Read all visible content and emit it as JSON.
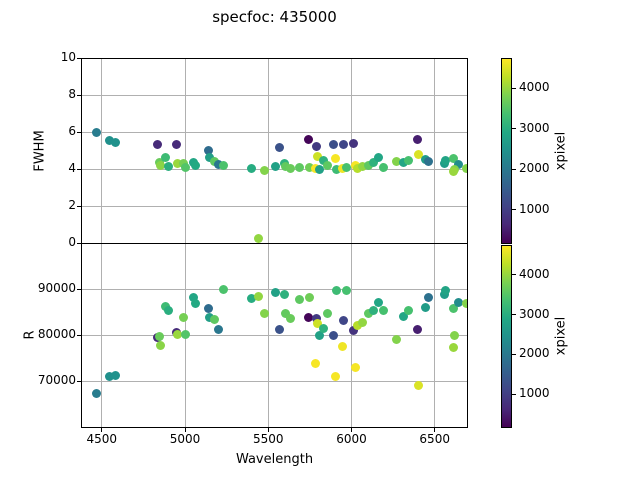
{
  "figure": {
    "title": "specfoc: 435000"
  },
  "chart_data": {
    "type": "scatter",
    "title": "specfoc: 435000",
    "xlabel": "Wavelength",
    "xlim": [
      4375,
      6700
    ],
    "xticks": [
      4500,
      5000,
      5500,
      6000,
      6500
    ],
    "grid": true,
    "legend": "none",
    "panels": [
      {
        "name": "fwhm-panel",
        "ylabel": "FWHM",
        "y_key": "fwhm",
        "ylim": [
          0,
          10
        ],
        "yticks": [
          0,
          2,
          4,
          6,
          8,
          10
        ]
      },
      {
        "name": "r-panel",
        "ylabel": "R",
        "y_key": "r",
        "ylim": [
          60000,
          100000
        ],
        "yticks": [
          70000,
          80000,
          90000
        ]
      }
    ],
    "colorbar": {
      "label": "xpixel",
      "vmin": 200,
      "vmax": 4750,
      "ticks": [
        1000,
        2000,
        3000,
        4000
      ]
    },
    "points": [
      {
        "wavelength": 4470,
        "fwhm": 5.95,
        "r": 67300,
        "xpixel": 2100
      },
      {
        "wavelength": 4545,
        "fwhm": 5.52,
        "r": 70900,
        "xpixel": 2450
      },
      {
        "wavelength": 4580,
        "fwhm": 5.45,
        "r": 71300,
        "xpixel": 2500
      },
      {
        "wavelength": 4835,
        "fwhm": 5.3,
        "r": 79500,
        "xpixel": 700
      },
      {
        "wavelength": 4845,
        "fwhm": 4.35,
        "r": 79700,
        "xpixel": 3700
      },
      {
        "wavelength": 4855,
        "fwhm": 4.2,
        "r": 77700,
        "xpixel": 3950
      },
      {
        "wavelength": 4880,
        "fwhm": 4.6,
        "r": 86200,
        "xpixel": 3300
      },
      {
        "wavelength": 4900,
        "fwhm": 4.15,
        "r": 85400,
        "xpixel": 3050
      },
      {
        "wavelength": 4950,
        "fwhm": 5.3,
        "r": 80600,
        "xpixel": 700
      },
      {
        "wavelength": 4955,
        "fwhm": 4.3,
        "r": 80200,
        "xpixel": 4050
      },
      {
        "wavelength": 4990,
        "fwhm": 4.3,
        "r": 83800,
        "xpixel": 3800
      },
      {
        "wavelength": 5005,
        "fwhm": 4.1,
        "r": 80100,
        "xpixel": 3500
      },
      {
        "wavelength": 5050,
        "fwhm": 4.35,
        "r": 88200,
        "xpixel": 2900
      },
      {
        "wavelength": 5065,
        "fwhm": 4.2,
        "r": 86900,
        "xpixel": 2950
      },
      {
        "wavelength": 5140,
        "fwhm": 5.0,
        "r": 85700,
        "xpixel": 1800
      },
      {
        "wavelength": 5148,
        "fwhm": 4.62,
        "r": 83800,
        "xpixel": 2750
      },
      {
        "wavelength": 5180,
        "fwhm": 4.4,
        "r": 83300,
        "xpixel": 3600
      },
      {
        "wavelength": 5200,
        "fwhm": 4.25,
        "r": 81100,
        "xpixel": 2000
      },
      {
        "wavelength": 5230,
        "fwhm": 4.2,
        "r": 89800,
        "xpixel": 3450
      },
      {
        "wavelength": 5400,
        "fwhm": 4.05,
        "r": 87900,
        "xpixel": 3000
      },
      {
        "wavelength": 5440,
        "fwhm": 0.27,
        "r": 88350,
        "xpixel": 4000
      },
      {
        "wavelength": 5480,
        "fwhm": 3.9,
        "r": 84650,
        "xpixel": 3900
      },
      {
        "wavelength": 5545,
        "fwhm": 4.15,
        "r": 89300,
        "xpixel": 2800
      },
      {
        "wavelength": 5570,
        "fwhm": 5.15,
        "r": 81100,
        "xpixel": 1350
      },
      {
        "wavelength": 5595,
        "fwhm": 4.3,
        "r": 88800,
        "xpixel": 3100
      },
      {
        "wavelength": 5605,
        "fwhm": 4.15,
        "r": 84650,
        "xpixel": 3650
      },
      {
        "wavelength": 5635,
        "fwhm": 4.05,
        "r": 83600,
        "xpixel": 3700
      },
      {
        "wavelength": 5690,
        "fwhm": 4.1,
        "r": 87700,
        "xpixel": 3600
      },
      {
        "wavelength": 5740,
        "fwhm": 5.6,
        "r": 83800,
        "xpixel": 250
      },
      {
        "wavelength": 5748,
        "fwhm": 4.1,
        "r": 88200,
        "xpixel": 3750
      },
      {
        "wavelength": 5786,
        "fwhm": 4.05,
        "r": 73800,
        "xpixel": 4700
      },
      {
        "wavelength": 5790,
        "fwhm": 5.2,
        "r": 83600,
        "xpixel": 950
      },
      {
        "wavelength": 5795,
        "fwhm": 4.7,
        "r": 82600,
        "xpixel": 4400
      },
      {
        "wavelength": 5808,
        "fwhm": 4.0,
        "r": 80000,
        "xpixel": 2800
      },
      {
        "wavelength": 5830,
        "fwhm": 4.45,
        "r": 81400,
        "xpixel": 3100
      },
      {
        "wavelength": 5856,
        "fwhm": 4.2,
        "r": 84650,
        "xpixel": 3600
      },
      {
        "wavelength": 5894,
        "fwhm": 5.35,
        "r": 79850,
        "xpixel": 1300
      },
      {
        "wavelength": 5902,
        "fwhm": 4.55,
        "r": 71000,
        "xpixel": 4700
      },
      {
        "wavelength": 5912,
        "fwhm": 4.0,
        "r": 89650,
        "xpixel": 3300
      },
      {
        "wavelength": 5944,
        "fwhm": 4.05,
        "r": 77500,
        "xpixel": 4650
      },
      {
        "wavelength": 5952,
        "fwhm": 5.3,
        "r": 83200,
        "xpixel": 1150
      },
      {
        "wavelength": 5968,
        "fwhm": 4.1,
        "r": 89650,
        "xpixel": 3400
      },
      {
        "wavelength": 6012,
        "fwhm": 5.4,
        "r": 80900,
        "xpixel": 850
      },
      {
        "wavelength": 6026,
        "fwhm": 4.2,
        "r": 72900,
        "xpixel": 4700
      },
      {
        "wavelength": 6038,
        "fwhm": 4.05,
        "r": 82150,
        "xpixel": 4250
      },
      {
        "wavelength": 6066,
        "fwhm": 4.15,
        "r": 82650,
        "xpixel": 4000
      },
      {
        "wavelength": 6100,
        "fwhm": 4.2,
        "r": 84650,
        "xpixel": 3600
      },
      {
        "wavelength": 6130,
        "fwhm": 4.35,
        "r": 85350,
        "xpixel": 3100
      },
      {
        "wavelength": 6165,
        "fwhm": 4.6,
        "r": 87100,
        "xpixel": 2900
      },
      {
        "wavelength": 6192,
        "fwhm": 4.1,
        "r": 85350,
        "xpixel": 3400
      },
      {
        "wavelength": 6270,
        "fwhm": 4.43,
        "r": 78950,
        "xpixel": 3900
      },
      {
        "wavelength": 6315,
        "fwhm": 4.34,
        "r": 84000,
        "xpixel": 2900
      },
      {
        "wavelength": 6345,
        "fwhm": 4.45,
        "r": 85350,
        "xpixel": 3400
      },
      {
        "wavelength": 6395,
        "fwhm": 5.6,
        "r": 81200,
        "xpixel": 550
      },
      {
        "wavelength": 6400,
        "fwhm": 4.8,
        "r": 68950,
        "xpixel": 4500
      },
      {
        "wavelength": 6445,
        "fwhm": 4.53,
        "r": 86000,
        "xpixel": 2700
      },
      {
        "wavelength": 6460,
        "fwhm": 4.4,
        "r": 88200,
        "xpixel": 1900
      },
      {
        "wavelength": 6556,
        "fwhm": 4.3,
        "r": 88900,
        "xpixel": 2700
      },
      {
        "wavelength": 6566,
        "fwhm": 4.45,
        "r": 89650,
        "xpixel": 2850
      },
      {
        "wavelength": 6610,
        "fwhm": 4.56,
        "r": 85800,
        "xpixel": 3450
      },
      {
        "wavelength": 6640,
        "fwhm": 4.25,
        "r": 87100,
        "xpixel": 2400
      },
      {
        "wavelength": 6616,
        "fwhm": 4.0,
        "r": 79800,
        "xpixel": 3900
      },
      {
        "wavelength": 6612,
        "fwhm": 3.85,
        "r": 77300,
        "xpixel": 4050
      },
      {
        "wavelength": 6688,
        "fwhm": 4.05,
        "r": 86800,
        "xpixel": 3900
      }
    ]
  },
  "colors": {
    "background": "#ffffff",
    "text": "#000000",
    "grid": "#b0b0b0",
    "spine": "#000000",
    "viridis": [
      "#440154",
      "#482878",
      "#414487",
      "#355f8d",
      "#2a788e",
      "#21918c",
      "#22a884",
      "#44bf70",
      "#7ad151",
      "#bddf26",
      "#fde725"
    ]
  }
}
